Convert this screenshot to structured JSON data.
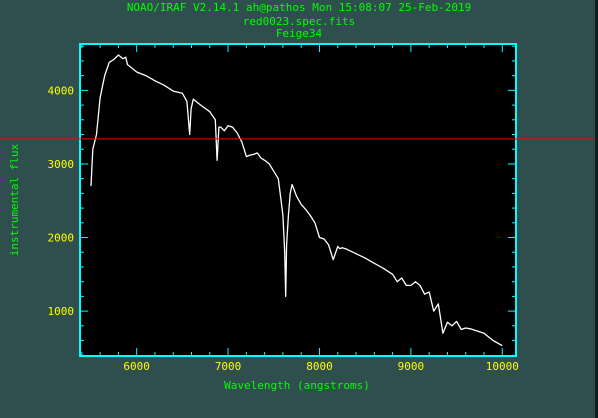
{
  "header": {
    "line1": "NOAO/IRAF V2.14.1 ah@pathos Mon 15:08:07 25-Feb-2019",
    "line2": "red0023.spec.fits",
    "line3": "Feige34"
  },
  "colors": {
    "background": "#2f4f4f",
    "plot_area": "#000000",
    "frame": "#00ffff",
    "text": "#00ff00",
    "tick_labels": "#ffff00",
    "spectrum": "#ffffff",
    "cursor": "#ff0000"
  },
  "cursor": {
    "flux": 3340
  },
  "chart_data": {
    "type": "line",
    "title": "red0023.spec.fits",
    "subtitle": "Feige34",
    "xlabel": "Wavelength (angstroms)",
    "ylabel": "instrumental flux",
    "xlim": [
      5380,
      10150
    ],
    "ylim": [
      390,
      4630
    ],
    "xticks": [
      6000,
      7000,
      8000,
      9000,
      10000
    ],
    "yticks": [
      1000,
      2000,
      3000,
      4000
    ],
    "xtick_labels": [
      "6000",
      "7000",
      "8000",
      "9000",
      "10000"
    ],
    "ytick_labels": [
      "1000",
      "2000",
      "3000",
      "4000"
    ],
    "grid": false,
    "series": [
      {
        "x": [
          5500,
          5520,
          5560,
          5600,
          5650,
          5700,
          5750,
          5800,
          5850,
          5880,
          5900,
          5950,
          6000,
          6100,
          6200,
          6300,
          6400,
          6500,
          6550,
          6580,
          6595,
          6620,
          6700,
          6800,
          6860,
          6880,
          6900,
          6920,
          6960,
          7000,
          7050,
          7100,
          7150,
          7200,
          7240,
          7280,
          7320,
          7360,
          7400,
          7450,
          7500,
          7550,
          7580,
          7600,
          7620,
          7630,
          7640,
          7660,
          7680,
          7700,
          7750,
          7800,
          7850,
          7900,
          7950,
          8000,
          8050,
          8100,
          8150,
          8200,
          8220,
          8250,
          8300,
          8400,
          8500,
          8600,
          8700,
          8800,
          8850,
          8900,
          8950,
          9000,
          9050,
          9100,
          9150,
          9200,
          9250,
          9300,
          9350,
          9400,
          9450,
          9500,
          9550,
          9600,
          9650,
          9700,
          9800,
          9900,
          10000
        ],
        "y": [
          2700,
          3200,
          3400,
          3900,
          4200,
          4380,
          4420,
          4480,
          4430,
          4450,
          4350,
          4300,
          4250,
          4200,
          4130,
          4070,
          3990,
          3960,
          3850,
          3400,
          3750,
          3880,
          3800,
          3710,
          3600,
          3050,
          3500,
          3500,
          3450,
          3520,
          3500,
          3420,
          3300,
          3100,
          3120,
          3130,
          3150,
          3080,
          3050,
          3000,
          2900,
          2800,
          2500,
          2300,
          1800,
          1200,
          1900,
          2300,
          2600,
          2720,
          2560,
          2450,
          2380,
          2300,
          2200,
          2000,
          1980,
          1900,
          1700,
          1880,
          1850,
          1860,
          1840,
          1780,
          1720,
          1650,
          1580,
          1500,
          1400,
          1450,
          1350,
          1350,
          1400,
          1350,
          1230,
          1260,
          1000,
          1100,
          700,
          850,
          800,
          860,
          750,
          770,
          760,
          740,
          700,
          600,
          530
        ]
      }
    ]
  }
}
